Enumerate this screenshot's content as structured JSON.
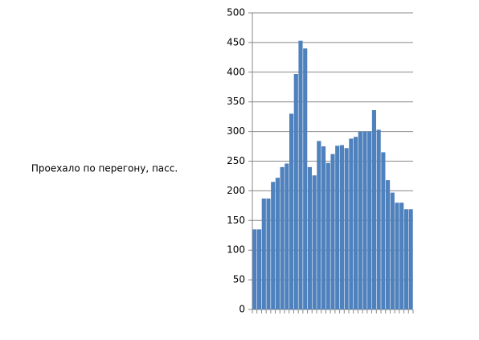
{
  "chart_data": {
    "type": "bar",
    "y_label": "Проехало по перегону, пасс.",
    "categories": [
      null,
      null,
      null,
      null,
      null,
      null,
      null,
      null,
      null,
      null,
      null,
      null,
      null,
      null,
      null,
      null,
      null,
      null,
      null,
      null,
      null,
      null,
      null,
      null,
      null,
      null,
      null,
      null,
      null,
      null,
      null,
      null,
      null,
      null,
      null
    ],
    "values": [
      135,
      135,
      187,
      187,
      215,
      222,
      240,
      246,
      330,
      397,
      453,
      440,
      240,
      226,
      284,
      275,
      247,
      262,
      276,
      277,
      272,
      288,
      291,
      300,
      300,
      300,
      336,
      303,
      265,
      218,
      197,
      180,
      180,
      169,
      169
    ],
    "color": "#4f81bd",
    "ylim": [
      0,
      500
    ],
    "yticks": [
      0,
      50,
      100,
      150,
      200,
      250,
      300,
      350,
      400,
      450,
      500
    ],
    "grid": true
  }
}
